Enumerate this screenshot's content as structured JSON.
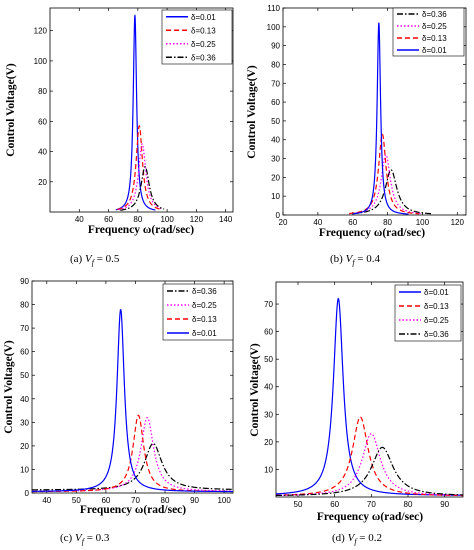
{
  "chart_data": [
    {
      "type": "line",
      "panel": "a",
      "caption_prefix": "(a)",
      "caption_var": "V",
      "caption_sub": "f",
      "caption_value": "= 0.5",
      "xlabel": "Frequency ω(rad/sec)",
      "ylabel": "Control Voltage(V)",
      "xlim": [
        20,
        145
      ],
      "ylim": [
        0,
        135
      ],
      "xticks": [
        40,
        60,
        80,
        100,
        120,
        140
      ],
      "yticks": [
        20,
        40,
        60,
        80,
        100,
        120
      ],
      "legend_position": "top-right",
      "series": [
        {
          "name": "δ=0.01",
          "color": "#0000ff",
          "dash": "solid",
          "peak_x": 78,
          "peak_y": 130,
          "width": 1.4,
          "base_left": 65,
          "base_right": 92
        },
        {
          "name": "δ=0.13",
          "color": "#ff0000",
          "dash": "dashed",
          "peak_x": 81,
          "peak_y": 57,
          "width": 2.6,
          "base_left": 66,
          "base_right": 95
        },
        {
          "name": "δ=0.25",
          "color": "#ff00ff",
          "dash": "dotted",
          "peak_x": 83,
          "peak_y": 45,
          "width": 3.0,
          "base_left": 67,
          "base_right": 96
        },
        {
          "name": "δ=0.36",
          "color": "#000000",
          "dash": "dashdot",
          "peak_x": 85,
          "peak_y": 30,
          "width": 3.4,
          "base_left": 68,
          "base_right": 98
        }
      ]
    },
    {
      "type": "line",
      "panel": "b",
      "caption_prefix": "(b)",
      "caption_var": "V",
      "caption_sub": "f",
      "caption_value": "= 0.4",
      "xlabel": "Frequency ω(rad/sec)",
      "ylabel": "Control Voltage(V)",
      "xlim": [
        20,
        125
      ],
      "ylim": [
        0,
        110
      ],
      "xticks": [
        20,
        40,
        60,
        80,
        100,
        120
      ],
      "yticks": [
        0,
        10,
        20,
        30,
        40,
        50,
        60,
        70,
        80,
        90,
        100,
        110
      ],
      "legend_position": "top-right",
      "series": [
        {
          "name": "δ=0.36",
          "color": "#000000",
          "dash": "dashdot",
          "peak_x": 82,
          "peak_y": 24,
          "width": 4.0,
          "base_left": 60,
          "base_right": 105
        },
        {
          "name": "δ=0.25",
          "color": "#ff00ff",
          "dash": "dotted",
          "peak_x": 79,
          "peak_y": 32,
          "width": 3.2,
          "base_left": 58,
          "base_right": 100
        },
        {
          "name": "δ=0.13",
          "color": "#ff0000",
          "dash": "dashed",
          "peak_x": 77,
          "peak_y": 43,
          "width": 2.6,
          "base_left": 58,
          "base_right": 98
        },
        {
          "name": "δ=0.01",
          "color": "#0000ff",
          "dash": "solid",
          "peak_x": 75,
          "peak_y": 102,
          "width": 1.2,
          "base_left": 60,
          "base_right": 92
        }
      ]
    },
    {
      "type": "line",
      "panel": "c",
      "caption_prefix": "(c)",
      "caption_var": "V",
      "caption_sub": "f",
      "caption_value": "= 0.3",
      "xlabel": "Frequency ω(rad/sec)",
      "ylabel": "Control Voltage(V)",
      "xlim": [
        35,
        103
      ],
      "ylim": [
        0,
        90
      ],
      "xticks": [
        40,
        50,
        60,
        70,
        80,
        90,
        100
      ],
      "yticks": [
        0,
        10,
        20,
        30,
        40,
        50,
        60,
        70,
        80,
        90
      ],
      "legend_position": "top-right",
      "series": [
        {
          "name": "δ=0.36",
          "color": "#000000",
          "dash": "dashdot",
          "peak_x": 76,
          "peak_y": 21,
          "width": 3.6,
          "base_left": 35,
          "base_right": 103,
          "floor": 1.2
        },
        {
          "name": "δ=0.25",
          "color": "#ff00ff",
          "dash": "dotted",
          "peak_x": 74,
          "peak_y": 32,
          "width": 2.6,
          "base_left": 35,
          "base_right": 103,
          "floor": 0.6
        },
        {
          "name": "δ=0.13",
          "color": "#ff0000",
          "dash": "dashed",
          "peak_x": 71,
          "peak_y": 33,
          "width": 2.2,
          "base_left": 35,
          "base_right": 103,
          "floor": 0.5
        },
        {
          "name": "δ=0.01",
          "color": "#0000ff",
          "dash": "solid",
          "peak_x": 65,
          "peak_y": 78,
          "width": 1.5,
          "base_left": 35,
          "base_right": 103,
          "floor": 0.5
        }
      ]
    },
    {
      "type": "line",
      "panel": "d",
      "caption_prefix": "(d)",
      "caption_var": "V",
      "caption_sub": "f",
      "caption_value": "= 0.2",
      "xlabel": "Frequency ω(rad/sec)",
      "ylabel": "Control Voltage(V)",
      "xlim": [
        44,
        95
      ],
      "ylim": [
        0,
        78
      ],
      "xticks": [
        50,
        60,
        70,
        80,
        90
      ],
      "yticks": [
        10,
        20,
        30,
        40,
        50,
        60,
        70
      ],
      "legend_position": "top-right",
      "series": [
        {
          "name": "δ=0.01",
          "color": "#0000ff",
          "dash": "solid",
          "peak_x": 61,
          "peak_y": 72,
          "width": 1.6,
          "base_left": 44,
          "base_right": 95,
          "floor": 0.5
        },
        {
          "name": "δ=0.13",
          "color": "#ff0000",
          "dash": "dashed",
          "peak_x": 67,
          "peak_y": 29,
          "width": 2.6,
          "base_left": 44,
          "base_right": 95,
          "floor": 0.3
        },
        {
          "name": "δ=0.25",
          "color": "#ff00ff",
          "dash": "dotted",
          "peak_x": 70,
          "peak_y": 23,
          "width": 3.0,
          "base_left": 44,
          "base_right": 95,
          "floor": 0.3
        },
        {
          "name": "δ=0.36",
          "color": "#000000",
          "dash": "dashdot",
          "peak_x": 73,
          "peak_y": 18,
          "width": 3.6,
          "base_left": 44,
          "base_right": 95,
          "floor": 0.3
        }
      ]
    }
  ]
}
